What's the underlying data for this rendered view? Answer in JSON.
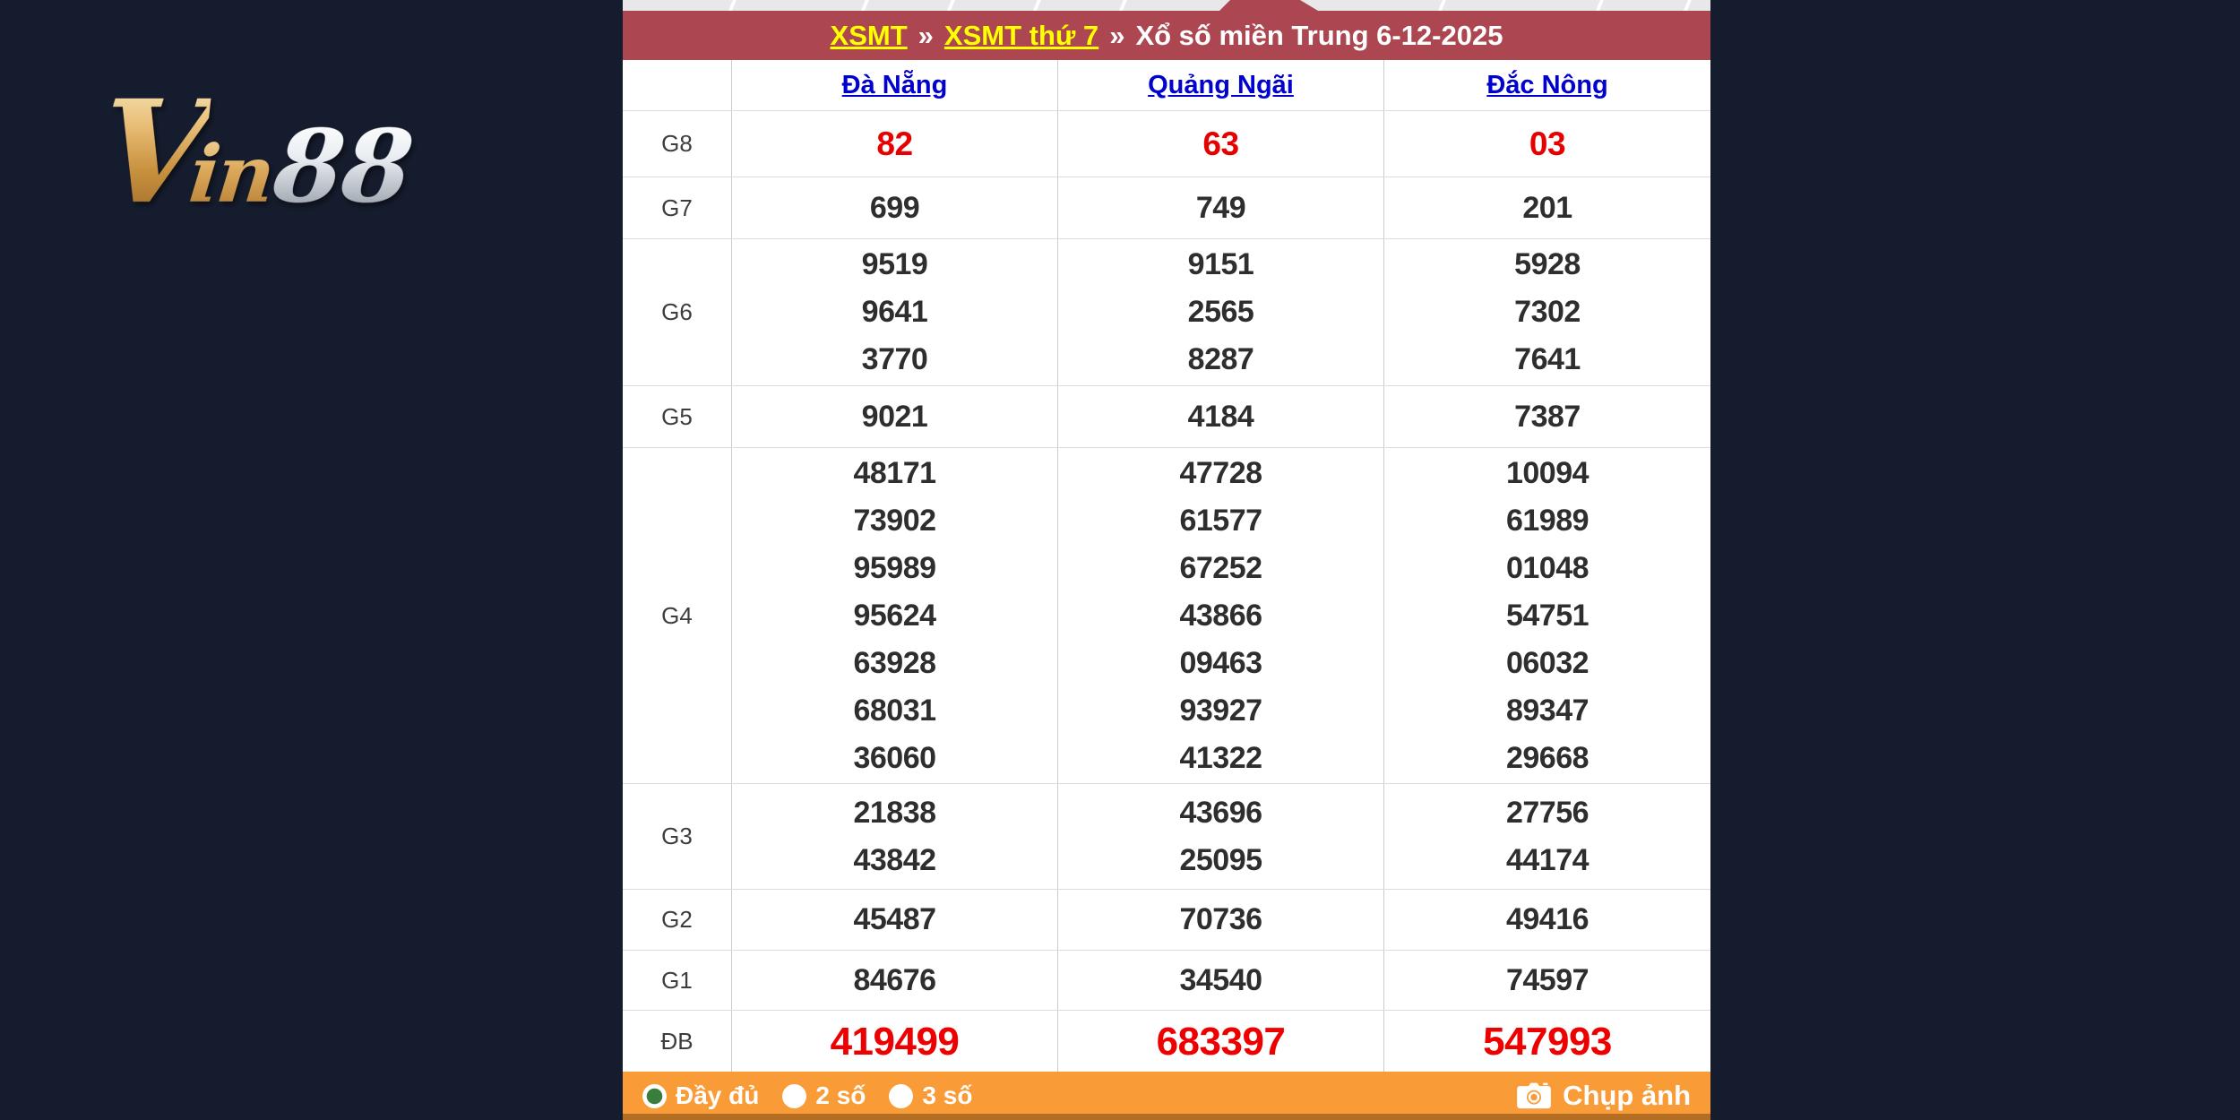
{
  "logo": {
    "part_v": "V",
    "part_in": "in",
    "part_88": "88"
  },
  "header": {
    "link1": "XSMT",
    "separator1": "»",
    "link2": "XSMT thứ 7",
    "separator2": "»",
    "title": "Xổ số miền Trung 6-12-2025",
    "bar_color": "#AC4751",
    "link_color": "#FFFF00"
  },
  "table": {
    "columns": [
      "Đà Nẵng",
      "Quảng Ngãi",
      "Đắc Nông"
    ],
    "header_link_color": "#0101CE",
    "red_value_color": "#E60000",
    "rows": [
      {
        "label": "G8",
        "style": "red",
        "values": [
          [
            "82"
          ],
          [
            "63"
          ],
          [
            "03"
          ]
        ]
      },
      {
        "label": "G7",
        "style": "normal",
        "values": [
          [
            "699"
          ],
          [
            "749"
          ],
          [
            "201"
          ]
        ]
      },
      {
        "label": "G6",
        "style": "normal",
        "values": [
          [
            "9519",
            "9641",
            "3770"
          ],
          [
            "9151",
            "2565",
            "8287"
          ],
          [
            "5928",
            "7302",
            "7641"
          ]
        ]
      },
      {
        "label": "G5",
        "style": "normal",
        "values": [
          [
            "9021"
          ],
          [
            "4184"
          ],
          [
            "7387"
          ]
        ]
      },
      {
        "label": "G4",
        "style": "normal",
        "values": [
          [
            "48171",
            "73902",
            "95989",
            "95624",
            "63928",
            "68031",
            "36060"
          ],
          [
            "47728",
            "61577",
            "67252",
            "43866",
            "09463",
            "93927",
            "41322"
          ],
          [
            "10094",
            "61989",
            "01048",
            "54751",
            "06032",
            "89347",
            "29668"
          ]
        ]
      },
      {
        "label": "G3",
        "style": "normal",
        "values": [
          [
            "21838",
            "43842"
          ],
          [
            "43696",
            "25095"
          ],
          [
            "27756",
            "44174"
          ]
        ]
      },
      {
        "label": "G2",
        "style": "normal",
        "values": [
          [
            "45487"
          ],
          [
            "70736"
          ],
          [
            "49416"
          ]
        ]
      },
      {
        "label": "G1",
        "style": "normal",
        "values": [
          [
            "84676"
          ],
          [
            "34540"
          ],
          [
            "74597"
          ]
        ]
      },
      {
        "label": "ĐB",
        "style": "jackpot",
        "values": [
          [
            "419499"
          ],
          [
            "683397"
          ],
          [
            "547993"
          ]
        ]
      }
    ]
  },
  "footer": {
    "bar_color": "#F99C38",
    "options": [
      {
        "label": "Đầy đủ",
        "selected": true
      },
      {
        "label": "2 số",
        "selected": false
      },
      {
        "label": "3 số",
        "selected": false
      }
    ],
    "capture_label": "Chụp ảnh",
    "radio_selected_color": "#3A7D3C"
  }
}
